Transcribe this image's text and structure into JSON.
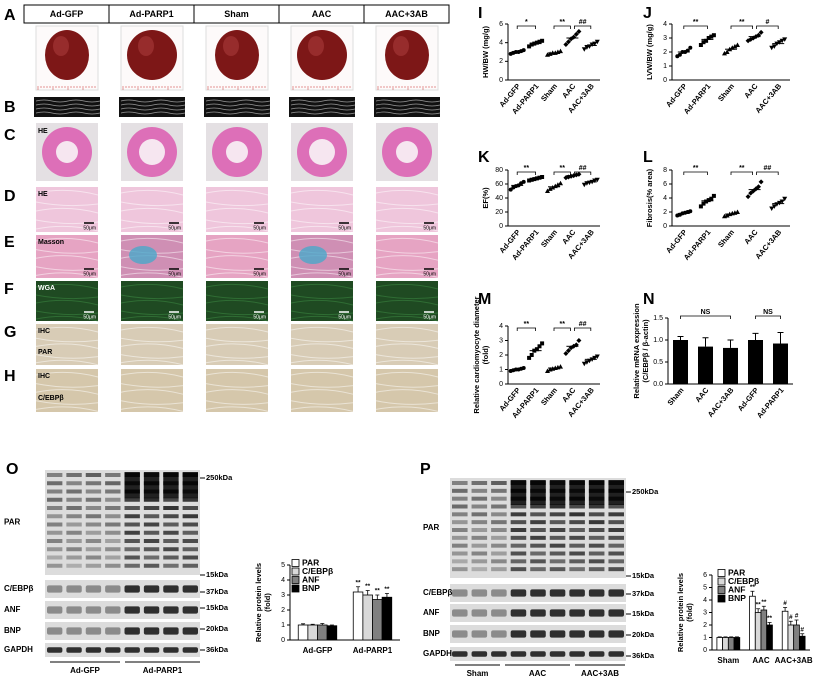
{
  "panel_letters": [
    "A",
    "B",
    "C",
    "D",
    "E",
    "F",
    "G",
    "H",
    "I",
    "J",
    "K",
    "L",
    "M",
    "N",
    "O",
    "P"
  ],
  "columns": [
    "Ad-GFP",
    "Ad-PARP1",
    "Sham",
    "AAC",
    "AAC+3AB"
  ],
  "row_labels": {
    "C": "HE",
    "D": "HE",
    "E": "Masson",
    "F": "WGA",
    "G": [
      "IHC",
      "PAR"
    ],
    "H": [
      "IHC",
      "C/EBPβ"
    ]
  },
  "scale_bar": "50μm",
  "chart_data": [
    {
      "type": "scatter",
      "categories": [
        "Ad-GFP",
        "Ad-PARP1",
        "Sham",
        "AAC",
        "AAC+3AB"
      ],
      "ylabel": "HW/BW (mg/g)",
      "ylim": [
        0,
        6
      ],
      "yticks": [
        0,
        2,
        4,
        6
      ],
      "points": [
        [
          2.8,
          2.9,
          3.0,
          3.0,
          3.1,
          3.2
        ],
        [
          3.6,
          3.8,
          3.9,
          4.0,
          4.1,
          4.2
        ],
        [
          2.7,
          2.8,
          2.9,
          2.9,
          3.0,
          3.1
        ],
        [
          3.8,
          4.1,
          4.4,
          4.6,
          4.9,
          5.2
        ],
        [
          3.3,
          3.5,
          3.6,
          3.8,
          3.9,
          4.1
        ]
      ],
      "means": [
        3.0,
        3.9,
        2.9,
        4.5,
        3.7
      ],
      "annotations": [
        "*",
        "**",
        "##"
      ]
    },
    {
      "type": "scatter",
      "categories": [
        "Ad-GFP",
        "Ad-PARP1",
        "Sham",
        "AAC",
        "AAC+3AB"
      ],
      "ylabel": "LVW/BW (mg/g)",
      "ylim": [
        0,
        4
      ],
      "yticks": [
        0,
        1,
        2,
        3,
        4
      ],
      "points": [
        [
          1.7,
          1.8,
          2.0,
          2.0,
          2.1,
          2.3
        ],
        [
          2.5,
          2.7,
          2.8,
          3.0,
          3.1,
          3.2
        ],
        [
          1.9,
          2.0,
          2.2,
          2.3,
          2.4,
          2.5
        ],
        [
          2.8,
          2.9,
          3.0,
          3.1,
          3.2,
          3.4
        ],
        [
          2.3,
          2.4,
          2.6,
          2.7,
          2.8,
          2.9
        ]
      ],
      "means": [
        2.0,
        2.9,
        2.2,
        3.1,
        2.6
      ],
      "annotations": [
        "**",
        "**",
        "#"
      ]
    },
    {
      "type": "scatter",
      "categories": [
        "Ad-GFP",
        "Ad-PARP1",
        "Sham",
        "AAC",
        "AAC+3AB"
      ],
      "ylabel": "EF(%)",
      "ylim": [
        0,
        80
      ],
      "yticks": [
        0,
        20,
        40,
        60,
        80
      ],
      "points": [
        [
          52,
          55,
          57,
          58,
          61,
          63
        ],
        [
          65,
          66,
          67,
          68,
          69,
          70
        ],
        [
          50,
          53,
          55,
          57,
          59,
          61
        ],
        [
          69,
          70,
          71,
          72,
          73,
          74
        ],
        [
          59,
          61,
          62,
          63,
          65,
          66
        ]
      ],
      "means": [
        58,
        68,
        56,
        72,
        63
      ],
      "annotations": [
        "**",
        "**",
        "##"
      ]
    },
    {
      "type": "scatter",
      "categories": [
        "Ad-GFP",
        "Ad-PARP1",
        "Sham",
        "AAC",
        "AAC+3AB"
      ],
      "ylabel": "Fibrosis(% area)",
      "ylim": [
        0,
        8
      ],
      "yticks": [
        0,
        2,
        4,
        6,
        8
      ],
      "points": [
        [
          1.5,
          1.6,
          1.8,
          1.9,
          2.0,
          2.1
        ],
        [
          2.8,
          3.2,
          3.5,
          3.7,
          3.9,
          4.3
        ],
        [
          1.4,
          1.5,
          1.7,
          1.8,
          1.9,
          2.0
        ],
        [
          4.2,
          4.7,
          5.0,
          5.3,
          5.6,
          6.3
        ],
        [
          2.5,
          2.8,
          3.1,
          3.3,
          3.5,
          3.9
        ]
      ],
      "means": [
        1.8,
        3.6,
        1.7,
        5.2,
        3.2
      ],
      "annotations": [
        "**",
        "**",
        "##"
      ]
    },
    {
      "type": "scatter",
      "categories": [
        "Ad-GFP",
        "Ad-PARP1",
        "Sham",
        "AAC",
        "AAC+3AB"
      ],
      "ylabel": [
        "Relative cardiomyocyte diameter",
        "(fold)"
      ],
      "ylim": [
        0,
        4
      ],
      "yticks": [
        0,
        1,
        2,
        3,
        4
      ],
      "points": [
        [
          0.9,
          0.95,
          1.0,
          1.0,
          1.05,
          1.1
        ],
        [
          1.8,
          2.0,
          2.3,
          2.4,
          2.6,
          2.8
        ],
        [
          0.9,
          1.0,
          1.05,
          1.1,
          1.15,
          1.2
        ],
        [
          2.1,
          2.3,
          2.5,
          2.6,
          2.7,
          3.0
        ],
        [
          1.4,
          1.5,
          1.6,
          1.7,
          1.8,
          1.9
        ]
      ],
      "means": [
        1.0,
        2.3,
        1.1,
        2.6,
        1.7
      ],
      "annotations": [
        "**",
        "**",
        "##"
      ]
    },
    {
      "type": "bar",
      "categories": [
        "Sham",
        "AAC",
        "AAC+3AB",
        "Ad-GFP",
        "Ad-PARP1"
      ],
      "ylabel": [
        "Relative mRNA expression",
        "(C/EBPβ / β-actin)"
      ],
      "ylim": [
        0,
        1.5
      ],
      "yticks": [
        {
          "value": 0,
          "label": "0.0"
        },
        0.5,
        {
          "value": 1,
          "label": "1.0"
        },
        1.5
      ],
      "values": [
        1.0,
        0.85,
        0.82,
        1.0,
        0.92
      ],
      "errors": [
        0.08,
        0.2,
        0.18,
        0.15,
        0.25
      ],
      "color": "#000000",
      "annotations": [
        "NS",
        "NS"
      ]
    },
    {
      "type": "grouped_bar",
      "categories": [
        "Ad-GFP",
        "Ad-PARP1"
      ],
      "ylabel": [
        "Relative protein levels",
        "(fold)"
      ],
      "ylim": [
        0,
        5
      ],
      "yticks": [
        0,
        1,
        2,
        3,
        4,
        5
      ],
      "series": [
        {
          "name": "PAR",
          "color": "#ffffff",
          "values": [
            1.0,
            3.2
          ],
          "errors": [
            0.08,
            0.35
          ],
          "annotations": [
            null,
            "**"
          ]
        },
        {
          "name": "C/EBPβ",
          "color": "#d9d9d9",
          "values": [
            1.0,
            3.0
          ],
          "errors": [
            0.05,
            0.3
          ],
          "annotations": [
            null,
            "**"
          ]
        },
        {
          "name": "ANF",
          "color": "#808080",
          "values": [
            1.0,
            2.7
          ],
          "errors": [
            0.1,
            0.3
          ],
          "annotations": [
            null,
            "**"
          ]
        },
        {
          "name": "BNP",
          "color": "#000000",
          "values": [
            0.95,
            2.85
          ],
          "errors": [
            0.05,
            0.25
          ],
          "annotations": [
            null,
            "**"
          ]
        }
      ]
    },
    {
      "type": "grouped_bar",
      "categories": [
        "Sham",
        "AAC",
        "AAC+3AB"
      ],
      "ylabel": [
        "Relative protein levels",
        "(fold)"
      ],
      "ylim": [
        0,
        6
      ],
      "yticks": [
        0,
        1,
        2,
        3,
        4,
        5,
        6
      ],
      "series": [
        {
          "name": "PAR",
          "color": "#ffffff",
          "values": [
            1.0,
            4.3,
            3.1
          ],
          "errors": [
            0.05,
            0.4,
            0.3
          ],
          "annotations": [
            null,
            "**",
            "#"
          ]
        },
        {
          "name": "C/EBPβ",
          "color": "#d9d9d9",
          "values": [
            1.0,
            3.0,
            2.0
          ],
          "errors": [
            0.05,
            0.3,
            0.3
          ],
          "annotations": [
            null,
            "**",
            "#"
          ]
        },
        {
          "name": "ANF",
          "color": "#808080",
          "values": [
            1.0,
            3.2,
            2.0
          ],
          "errors": [
            0.05,
            0.3,
            0.4
          ],
          "annotations": [
            null,
            "**",
            "#"
          ]
        },
        {
          "name": "BNP",
          "color": "#000000",
          "values": [
            1.0,
            2.0,
            1.1
          ],
          "errors": [
            0.05,
            0.2,
            0.2
          ],
          "annotations": [
            null,
            "**",
            "#"
          ]
        }
      ]
    }
  ],
  "blots": [
    {
      "labels": [
        "PAR",
        "C/EBPβ",
        "ANF",
        "BNP",
        "GAPDH"
      ],
      "markers": [
        "250kDa",
        "15kDa",
        "37kDa",
        "15kDa",
        "20kDa",
        "36kDa"
      ],
      "groups": [
        "Ad-GFP",
        "Ad-PARP1"
      ]
    },
    {
      "labels": [
        "PAR",
        "C/EBPβ",
        "ANF",
        "BNP",
        "GAPDH"
      ],
      "markers": [
        "250kDa",
        "15kDa",
        "37kDa",
        "15kDa",
        "20kDa",
        "36kDa"
      ],
      "groups": [
        "Sham",
        "AAC",
        "AAC+3AB"
      ]
    }
  ]
}
